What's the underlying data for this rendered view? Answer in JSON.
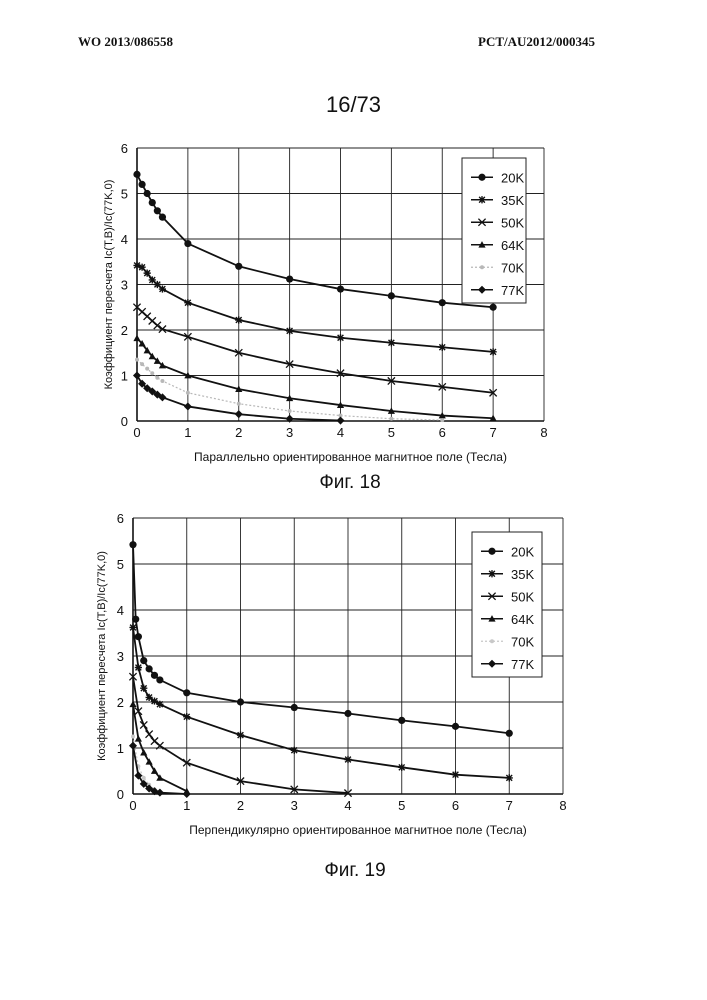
{
  "header": {
    "left": "WO 2013/086558",
    "right": "PCT/AU2012/000345"
  },
  "page_number": "16/73",
  "chart_data": [
    {
      "type": "line",
      "caption": "Фиг. 18",
      "xlabel": "Параллельно ориентированное магнитное поле (Тесла)",
      "ylabel": "Коэффициент пересчета Ic(T,B)/Ic(77K,0)",
      "xlim": [
        0,
        8
      ],
      "ylim": [
        0,
        6
      ],
      "xticks": [
        "0",
        "1",
        "2",
        "3",
        "4",
        "5",
        "6",
        "7",
        "8"
      ],
      "yticks": [
        "0",
        "1",
        "2",
        "3",
        "4",
        "5",
        "6"
      ],
      "grid": true,
      "legend_position": "top-right",
      "series": [
        {
          "name": "20K",
          "marker": "circle",
          "color": "#111111",
          "x": [
            0,
            0.1,
            0.2,
            0.3,
            0.4,
            0.5,
            1,
            2,
            3,
            4,
            5,
            6,
            7
          ],
          "y": [
            5.42,
            5.2,
            5.0,
            4.8,
            4.62,
            4.48,
            3.9,
            3.4,
            3.12,
            2.9,
            2.75,
            2.6,
            2.5
          ]
        },
        {
          "name": "35K",
          "marker": "asterisk",
          "color": "#111111",
          "x": [
            0,
            0.1,
            0.2,
            0.3,
            0.4,
            0.5,
            1,
            2,
            3,
            4,
            5,
            6,
            7
          ],
          "y": [
            3.42,
            3.38,
            3.25,
            3.1,
            3.0,
            2.9,
            2.6,
            2.22,
            1.98,
            1.83,
            1.72,
            1.62,
            1.52
          ]
        },
        {
          "name": "50K",
          "marker": "x",
          "color": "#111111",
          "x": [
            0,
            0.1,
            0.2,
            0.3,
            0.4,
            0.5,
            1,
            2,
            3,
            4,
            5,
            6,
            7
          ],
          "y": [
            2.5,
            2.4,
            2.3,
            2.2,
            2.1,
            2.02,
            1.85,
            1.5,
            1.25,
            1.05,
            0.88,
            0.75,
            0.62
          ]
        },
        {
          "name": "64K",
          "marker": "triangle",
          "color": "#111111",
          "x": [
            0,
            0.1,
            0.2,
            0.3,
            0.4,
            0.5,
            1,
            2,
            3,
            4,
            5,
            6,
            7
          ],
          "y": [
            1.82,
            1.7,
            1.55,
            1.42,
            1.32,
            1.22,
            1.0,
            0.7,
            0.5,
            0.35,
            0.22,
            0.12,
            0.06
          ]
        },
        {
          "name": "70K",
          "marker": "dot",
          "color": "#b8b8b8",
          "x": [
            0,
            0.1,
            0.2,
            0.3,
            0.4,
            0.5,
            1,
            2,
            3,
            4,
            5,
            6
          ],
          "y": [
            1.35,
            1.25,
            1.15,
            1.05,
            0.95,
            0.88,
            0.62,
            0.38,
            0.22,
            0.12,
            0.05,
            0.02
          ]
        },
        {
          "name": "77K",
          "marker": "diamond",
          "color": "#111111",
          "x": [
            0,
            0.1,
            0.2,
            0.3,
            0.4,
            0.5,
            1,
            2,
            3,
            4
          ],
          "y": [
            1.0,
            0.82,
            0.72,
            0.65,
            0.58,
            0.52,
            0.32,
            0.15,
            0.05,
            0.01
          ]
        }
      ]
    },
    {
      "type": "line",
      "caption": "Фиг. 19",
      "xlabel": "Перпендикулярно ориентированное магнитное поле (Тесла)",
      "ylabel": "Коэффициент пересчета Ic(T,B)/Ic(77K,0)",
      "xlim": [
        0,
        8
      ],
      "ylim": [
        0,
        6
      ],
      "xticks": [
        "0",
        "1",
        "2",
        "3",
        "4",
        "5",
        "6",
        "7",
        "8"
      ],
      "yticks": [
        "0",
        "1",
        "2",
        "3",
        "4",
        "5",
        "6"
      ],
      "grid": true,
      "legend_position": "top-right",
      "series": [
        {
          "name": "20K",
          "marker": "circle",
          "color": "#111111",
          "x": [
            0,
            0.05,
            0.1,
            0.2,
            0.3,
            0.4,
            0.5,
            1,
            2,
            3,
            4,
            5,
            6,
            7
          ],
          "y": [
            5.42,
            3.8,
            3.42,
            2.9,
            2.72,
            2.58,
            2.48,
            2.2,
            2.0,
            1.88,
            1.75,
            1.6,
            1.47,
            1.32
          ]
        },
        {
          "name": "35K",
          "marker": "asterisk",
          "color": "#111111",
          "x": [
            0,
            0.1,
            0.2,
            0.3,
            0.4,
            0.5,
            1,
            2,
            3,
            4,
            5,
            6,
            7
          ],
          "y": [
            3.62,
            2.75,
            2.3,
            2.1,
            2.02,
            1.95,
            1.68,
            1.28,
            0.95,
            0.75,
            0.58,
            0.42,
            0.35
          ]
        },
        {
          "name": "50K",
          "marker": "x",
          "color": "#111111",
          "x": [
            0,
            0.1,
            0.2,
            0.3,
            0.4,
            0.5,
            1,
            2,
            3,
            4
          ],
          "y": [
            2.55,
            1.8,
            1.5,
            1.3,
            1.15,
            1.05,
            0.68,
            0.28,
            0.1,
            0.02
          ]
        },
        {
          "name": "64K",
          "marker": "triangle",
          "color": "#111111",
          "x": [
            0,
            0.1,
            0.2,
            0.3,
            0.4,
            0.5,
            1
          ],
          "y": [
            1.95,
            1.2,
            0.9,
            0.7,
            0.5,
            0.35,
            0.06
          ]
        },
        {
          "name": "70K",
          "marker": "dot",
          "color": "#c8c8c8",
          "x": [
            0,
            0.1,
            0.2,
            0.3,
            0.4,
            0.5
          ],
          "y": [
            1.25,
            0.6,
            0.35,
            0.2,
            0.1,
            0.05
          ]
        },
        {
          "name": "77K",
          "marker": "diamond",
          "color": "#111111",
          "x": [
            0,
            0.1,
            0.2,
            0.3,
            0.4,
            0.5,
            1
          ],
          "y": [
            1.05,
            0.4,
            0.22,
            0.12,
            0.06,
            0.03,
            0.0
          ]
        }
      ]
    }
  ]
}
